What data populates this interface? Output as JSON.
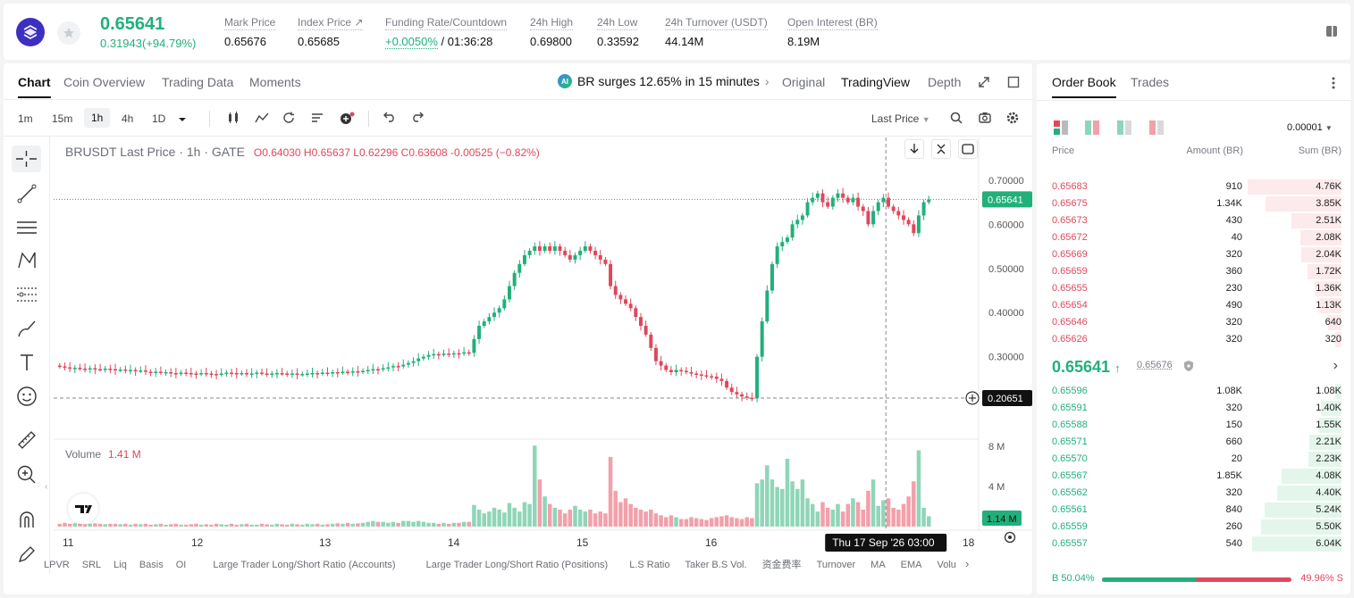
{
  "header": {
    "last_price": "0.65641",
    "change": "0.31943(+94.79%)",
    "stats": [
      {
        "label": "Mark Price",
        "value": "0.65676"
      },
      {
        "label": "Index Price ↗",
        "value": "0.65685"
      },
      {
        "label": "Funding Rate/Countdown",
        "value_green": "+0.0050%",
        "value": " / 01:36:28"
      },
      {
        "label": "24h High",
        "value": "0.69800"
      },
      {
        "label": "24h Low",
        "value": "0.33592"
      },
      {
        "label": "24h Turnover (USDT)",
        "value": "44.14M"
      },
      {
        "label": "Open Interest (BR)",
        "value": "8.19M"
      }
    ]
  },
  "tabs": [
    "Chart",
    "Coin Overview",
    "Trading Data",
    "Moments"
  ],
  "news": {
    "badge": "AI",
    "text": "BR surges 12.65% in 15 minutes"
  },
  "views": [
    "Original",
    "TradingView",
    "Depth"
  ],
  "timeframes": [
    "1m",
    "15m",
    "1h",
    "4h",
    "1D"
  ],
  "price_type": "Last Price",
  "legend": {
    "title": "BRUSDT Last Price · 1h · GATE",
    "ohlc": "O0.64030  H0.65637  L0.62296  C0.63608  -0.00525 (−0.82%)"
  },
  "volume_legend": {
    "label": "Volume",
    "value": "1.41 M"
  },
  "chart_data": {
    "type": "candlestick",
    "x_ticks": [
      "11",
      "12",
      "13",
      "14",
      "15",
      "16",
      "18"
    ],
    "y_ticks": [
      "0.70000",
      "0.60000",
      "0.50000",
      "0.40000",
      "0.30000"
    ],
    "volume_ticks": [
      "8 M",
      "4 M"
    ],
    "current_price_label": "0.65641",
    "crosshair_price_label": "0.20651",
    "crosshair_time_label": "Thu 17 Sep '26   03:00",
    "current_volume_label": "1.14 M",
    "ylim": [
      0.17,
      0.73
    ],
    "close_series": [
      0.278,
      0.276,
      0.274,
      0.275,
      0.273,
      0.272,
      0.274,
      0.272,
      0.271,
      0.273,
      0.272,
      0.27,
      0.271,
      0.269,
      0.27,
      0.268,
      0.269,
      0.266,
      0.265,
      0.266,
      0.264,
      0.265,
      0.263,
      0.262,
      0.264,
      0.263,
      0.262,
      0.261,
      0.263,
      0.262,
      0.261,
      0.26,
      0.262,
      0.264,
      0.263,
      0.262,
      0.263,
      0.261,
      0.262,
      0.264,
      0.262,
      0.261,
      0.262,
      0.263,
      0.262,
      0.261,
      0.262,
      0.26,
      0.261,
      0.262,
      0.263,
      0.262,
      0.264,
      0.263,
      0.265,
      0.264,
      0.266,
      0.265,
      0.267,
      0.266,
      0.268,
      0.27,
      0.272,
      0.271,
      0.274,
      0.276,
      0.279,
      0.278,
      0.282,
      0.286,
      0.29,
      0.296,
      0.3,
      0.304,
      0.306,
      0.305,
      0.307,
      0.306,
      0.308,
      0.307,
      0.31,
      0.309,
      0.34,
      0.37,
      0.38,
      0.39,
      0.4,
      0.41,
      0.43,
      0.46,
      0.49,
      0.51,
      0.53,
      0.54,
      0.55,
      0.54,
      0.55,
      0.54,
      0.55,
      0.54,
      0.53,
      0.52,
      0.53,
      0.54,
      0.55,
      0.54,
      0.53,
      0.52,
      0.51,
      0.46,
      0.44,
      0.43,
      0.42,
      0.41,
      0.39,
      0.37,
      0.35,
      0.32,
      0.29,
      0.28,
      0.27,
      0.265,
      0.27,
      0.268,
      0.265,
      0.262,
      0.26,
      0.258,
      0.256,
      0.255,
      0.25,
      0.245,
      0.23,
      0.22,
      0.215,
      0.21,
      0.207,
      0.206,
      0.3,
      0.38,
      0.45,
      0.51,
      0.55,
      0.56,
      0.57,
      0.6,
      0.61,
      0.62,
      0.65,
      0.66,
      0.67,
      0.65,
      0.64,
      0.66,
      0.67,
      0.66,
      0.65,
      0.66,
      0.64,
      0.63,
      0.6,
      0.63,
      0.65,
      0.66,
      0.64,
      0.63,
      0.62,
      0.61,
      0.6,
      0.58,
      0.62,
      0.65,
      0.656
    ],
    "volume_series": [
      0.3,
      0.4,
      0.3,
      0.35,
      0.3,
      0.25,
      0.3,
      0.35,
      0.3,
      0.25,
      0.3,
      0.3,
      0.25,
      0.3,
      0.2,
      0.3,
      0.25,
      0.3,
      0.2,
      0.25,
      0.3,
      0.2,
      0.25,
      0.3,
      0.2,
      0.2,
      0.25,
      0.3,
      0.2,
      0.25,
      0.2,
      0.3,
      0.25,
      0.2,
      0.3,
      0.2,
      0.25,
      0.3,
      0.2,
      0.2,
      0.3,
      0.25,
      0.2,
      0.3,
      0.25,
      0.2,
      0.3,
      0.25,
      0.2,
      0.3,
      0.25,
      0.3,
      0.2,
      0.25,
      0.3,
      0.35,
      0.3,
      0.4,
      0.3,
      0.35,
      0.4,
      0.5,
      0.6,
      0.5,
      0.5,
      0.4,
      0.5,
      0.4,
      0.6,
      0.6,
      0.5,
      0.6,
      0.5,
      0.4,
      0.4,
      0.3,
      0.4,
      0.3,
      0.4,
      0.4,
      0.5,
      0.5,
      2.3,
      1.8,
      1.4,
      1.6,
      2.0,
      1.8,
      1.5,
      2.5,
      2.0,
      1.6,
      2.6,
      2.4,
      8.6,
      5.0,
      3.2,
      2.4,
      2.0,
      1.8,
      1.4,
      1.8,
      2.2,
      1.8,
      1.6,
      1.8,
      1.4,
      1.6,
      1.4,
      7.4,
      3.8,
      2.6,
      3.0,
      2.4,
      2.0,
      1.8,
      1.6,
      1.8,
      1.4,
      1.2,
      1.0,
      1.2,
      1.0,
      0.8,
      0.8,
      1.0,
      0.9,
      0.8,
      0.7,
      0.9,
      1.0,
      1.1,
      1.2,
      1.0,
      0.9,
      0.8,
      1.0,
      0.9,
      4.6,
      5.0,
      6.5,
      5.0,
      4.2,
      4.0,
      7.2,
      4.8,
      4.0,
      5.0,
      3.0,
      2.4,
      1.6,
      2.6,
      2.0,
      1.8,
      2.4,
      1.6,
      2.4,
      3.0,
      2.6,
      1.8,
      3.8,
      5.0,
      2.2,
      2.8,
      3.0,
      2.0,
      1.8,
      2.4,
      3.2,
      4.8,
      8.1,
      2.0,
      1.1
    ]
  },
  "indicators": [
    "LPVR",
    "SRL",
    "Liq",
    "Basis",
    "OI",
    "Large Trader Long/Short Ratio (Accounts)",
    "Large Trader Long/Short Ratio (Positions)",
    "L.S Ratio",
    "Taker B.S Vol.",
    "资金费率",
    "Turnover",
    "MA",
    "EMA",
    "Volu"
  ],
  "orderbook": {
    "tabs": [
      "Order Book",
      "Trades"
    ],
    "precision": "0.00001",
    "headers": [
      "Price",
      "Amount (BR)",
      "Sum (BR)"
    ],
    "asks": [
      {
        "p": "0.65683",
        "a": "910",
        "s": "4.76K",
        "f": 1.0
      },
      {
        "p": "0.65675",
        "a": "1.34K",
        "s": "3.85K",
        "f": 0.81
      },
      {
        "p": "0.65673",
        "a": "430",
        "s": "2.51K",
        "f": 0.53
      },
      {
        "p": "0.65672",
        "a": "40",
        "s": "2.08K",
        "f": 0.44
      },
      {
        "p": "0.65669",
        "a": "320",
        "s": "2.04K",
        "f": 0.43
      },
      {
        "p": "0.65659",
        "a": "360",
        "s": "1.72K",
        "f": 0.36
      },
      {
        "p": "0.65655",
        "a": "230",
        "s": "1.36K",
        "f": 0.29
      },
      {
        "p": "0.65654",
        "a": "490",
        "s": "1.13K",
        "f": 0.24
      },
      {
        "p": "0.65646",
        "a": "320",
        "s": "640",
        "f": 0.14
      },
      {
        "p": "0.65626",
        "a": "320",
        "s": "320",
        "f": 0.07
      }
    ],
    "mid_price": "0.65641",
    "mid_ref": "0.65676",
    "bids": [
      {
        "p": "0.65596",
        "a": "1.08K",
        "s": "1.08K",
        "f": 0.07
      },
      {
        "p": "0.65591",
        "a": "320",
        "s": "1.40K",
        "f": 0.22
      },
      {
        "p": "0.65588",
        "a": "150",
        "s": "1.55K",
        "f": 0.24
      },
      {
        "p": "0.65571",
        "a": "660",
        "s": "2.21K",
        "f": 0.34
      },
      {
        "p": "0.65570",
        "a": "20",
        "s": "2.23K",
        "f": 0.35
      },
      {
        "p": "0.65567",
        "a": "1.85K",
        "s": "4.08K",
        "f": 0.64
      },
      {
        "p": "0.65562",
        "a": "320",
        "s": "4.40K",
        "f": 0.69
      },
      {
        "p": "0.65561",
        "a": "840",
        "s": "5.24K",
        "f": 0.82
      },
      {
        "p": "0.65559",
        "a": "260",
        "s": "5.50K",
        "f": 0.86
      },
      {
        "p": "0.65557",
        "a": "540",
        "s": "6.04K",
        "f": 0.95
      }
    ],
    "buy_ratio": "B 50.04%",
    "sell_ratio": "49.96% S",
    "buy_fraction": 0.5004
  },
  "colors": {
    "up": "#21b07a",
    "down": "#e0475c",
    "up_light": "#8fd6b8",
    "down_light": "#f2a0aa"
  }
}
